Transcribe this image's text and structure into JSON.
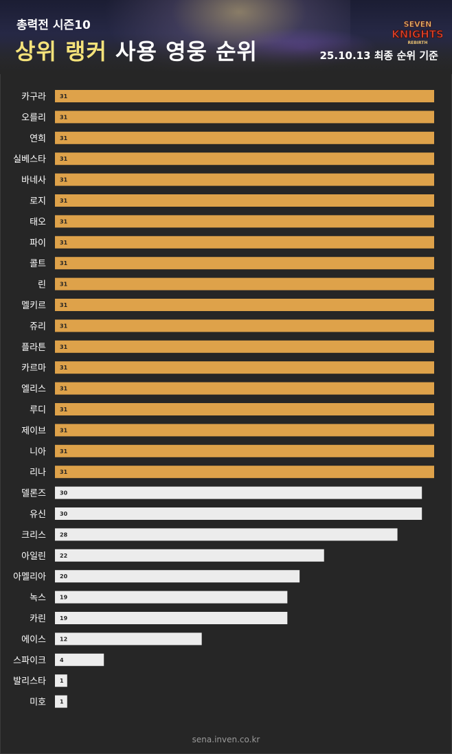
{
  "header": {
    "subtitle": "총력전 시즌10",
    "title_highlight": "상위 랭커",
    "title_rest": "사용 영웅 순위",
    "date": "25.10.13 최종 순위 기준"
  },
  "footer": {
    "source": "sena.inven.co.kr"
  },
  "colors": {
    "top_bar": "#dea24a",
    "other_bar": "#ececec",
    "background": "#262626",
    "label": "#ffffff",
    "highlight": "#f4e27a"
  },
  "chart_data": {
    "type": "bar",
    "orientation": "horizontal",
    "categories": [
      "카구라",
      "오를리",
      "연희",
      "실베스타",
      "바네사",
      "로지",
      "태오",
      "파이",
      "콜트",
      "린",
      "멜키르",
      "쥬리",
      "플라튼",
      "카르마",
      "엘리스",
      "루디",
      "제이브",
      "니아",
      "리나",
      "델론즈",
      "유신",
      "크리스",
      "아일린",
      "아멜리아",
      "녹스",
      "카린",
      "에이스",
      "스파이크",
      "발리스타",
      "미호"
    ],
    "values": [
      31,
      31,
      31,
      31,
      31,
      31,
      31,
      31,
      31,
      31,
      31,
      31,
      31,
      31,
      31,
      31,
      31,
      31,
      31,
      30,
      30,
      28,
      22,
      20,
      19,
      19,
      12,
      4,
      1,
      1
    ],
    "xlim": [
      0,
      31
    ],
    "grid": false,
    "legend": "none"
  }
}
